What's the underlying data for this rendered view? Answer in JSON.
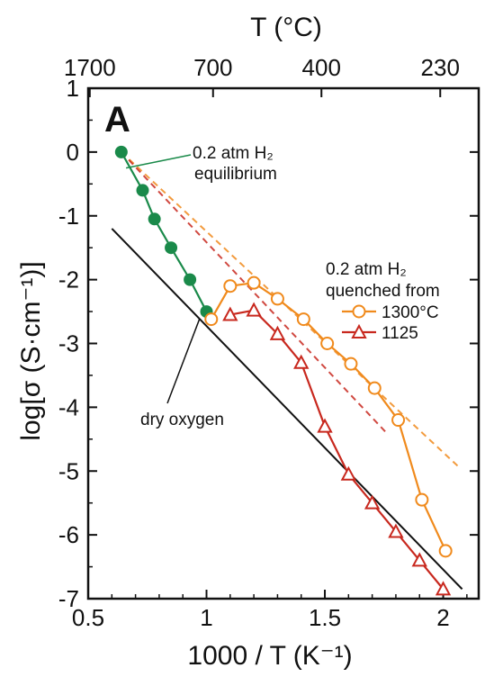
{
  "chart_data": {
    "type": "scatter",
    "panel_label": "A",
    "xlabel": "1000 / T (K⁻¹)",
    "ylabel": "log[σ (S·cm⁻¹)]",
    "top_xlabel": "T (°C)",
    "xlim": [
      0.5,
      2.15
    ],
    "ylim": [
      -7,
      1
    ],
    "x_ticks": [
      "0.5",
      "1",
      "1.5",
      "2"
    ],
    "x_tick_values": [
      0.5,
      1.0,
      1.5,
      2.0
    ],
    "y_ticks": [
      "1",
      "0",
      "-1",
      "-2",
      "-3",
      "-4",
      "-5",
      "-6",
      "-7"
    ],
    "y_tick_values": [
      1,
      0,
      -1,
      -2,
      -3,
      -4,
      -5,
      -6,
      -7
    ],
    "top_ticks": [
      "1700",
      "700",
      "400",
      "230"
    ],
    "top_tick_values_c": [
      1700,
      700,
      400,
      230
    ],
    "grid": false,
    "colors": {
      "equilibrium": "#1a8a4a",
      "q1300": "#f08a1c",
      "q1125": "#c8281e",
      "dry": "#111111"
    },
    "annotations": {
      "equilibrium_line1": "0.2 atm H₂",
      "equilibrium_line2": "equilibrium",
      "quench_line1": "0.2 atm H₂",
      "quench_line2": "quenched from",
      "dry_oxygen": "dry oxygen"
    },
    "series": [
      {
        "key": "equilibrium",
        "marker": "filled-circle",
        "x": [
          0.64,
          0.73,
          0.78,
          0.85,
          0.93,
          1.0
        ],
        "y": [
          0.0,
          -0.6,
          -1.05,
          -1.5,
          -2.0,
          -2.5
        ]
      },
      {
        "key": "q1300",
        "name": "1300°C",
        "marker": "open-circle",
        "x": [
          1.02,
          1.1,
          1.2,
          1.3,
          1.41,
          1.51,
          1.61,
          1.71,
          1.81,
          1.91,
          2.01
        ],
        "y": [
          -2.62,
          -2.1,
          -2.05,
          -2.3,
          -2.62,
          -3.0,
          -3.32,
          -3.7,
          -4.2,
          -5.45,
          -6.25
        ]
      },
      {
        "key": "q1125",
        "name": "1125",
        "marker": "open-triangle",
        "x": [
          1.1,
          1.2,
          1.3,
          1.4,
          1.5,
          1.6,
          1.7,
          1.8,
          1.9,
          2.0
        ],
        "y": [
          -2.55,
          -2.48,
          -2.85,
          -3.3,
          -4.3,
          -5.05,
          -5.5,
          -5.95,
          -6.4,
          -6.85
        ]
      }
    ],
    "extrapolations": [
      {
        "key": "q1300",
        "x": [
          0.64,
          2.07
        ],
        "y": [
          0.0,
          -4.95
        ]
      },
      {
        "key": "q1125",
        "x": [
          0.64,
          1.76
        ],
        "y": [
          0.0,
          -4.4
        ]
      }
    ],
    "dry_oxygen_line": {
      "x": [
        0.6,
        2.08
      ],
      "y": [
        -1.2,
        -6.85
      ]
    }
  }
}
